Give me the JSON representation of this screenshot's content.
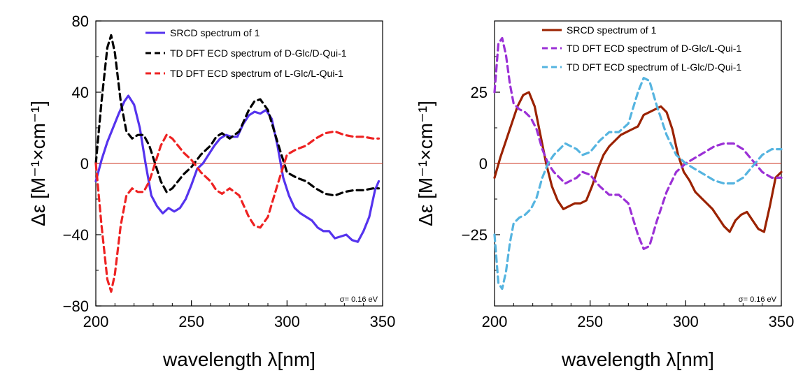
{
  "chart_data": [
    {
      "type": "line",
      "xlabel": "wavelength λ[nm]",
      "ylabel": "Δε [M⁻¹×cm⁻¹]",
      "xlim": [
        200,
        350
      ],
      "ylim": [
        -80,
        80
      ],
      "xticks": [
        "200",
        "250",
        "300",
        "350"
      ],
      "yticks": [
        "80",
        "40",
        "0",
        "−40",
        "−80"
      ],
      "annotation": "σ= 0.16 eV",
      "legend_position": "top-right",
      "series": [
        {
          "name": "SRCD spectrum of 1",
          "color": "#5533ee",
          "style": "solid",
          "x": [
            200,
            203,
            206,
            209,
            212,
            215,
            217,
            220,
            223,
            226,
            229,
            232,
            235,
            238,
            241,
            244,
            247,
            250,
            253,
            256,
            259,
            262,
            265,
            268,
            271,
            274,
            277,
            280,
            283,
            286,
            289,
            292,
            295,
            298,
            301,
            304,
            307,
            310,
            313,
            316,
            319,
            322,
            325,
            328,
            331,
            334,
            337,
            340,
            343,
            346,
            348
          ],
          "y": [
            -10,
            2,
            12,
            20,
            28,
            35,
            38,
            33,
            20,
            0,
            -18,
            -24,
            -28,
            -25,
            -27,
            -25,
            -20,
            -12,
            -3,
            0,
            5,
            10,
            14,
            16,
            15,
            15,
            22,
            27,
            29,
            28,
            30,
            25,
            10,
            -8,
            -18,
            -25,
            -28,
            -30,
            -32,
            -36,
            -38,
            -38,
            -42,
            -41,
            -40,
            -43,
            -44,
            -38,
            -30,
            -15,
            -10
          ]
        },
        {
          "name": "TD DFT ECD spectrum of D-Glc/D-Qui-1",
          "color": "#000000",
          "style": "dashed",
          "x": [
            200,
            203,
            206,
            208,
            210,
            213,
            216,
            219,
            222,
            225,
            228,
            231,
            234,
            237,
            240,
            243,
            246,
            250,
            255,
            260,
            263,
            266,
            270,
            275,
            280,
            283,
            286,
            290,
            295,
            300,
            305,
            310,
            315,
            320,
            325,
            330,
            335,
            340,
            345,
            348
          ],
          "y": [
            0,
            35,
            65,
            72,
            62,
            35,
            18,
            14,
            16,
            16,
            10,
            0,
            -10,
            -16,
            -14,
            -10,
            -6,
            -2,
            5,
            10,
            15,
            17,
            14,
            18,
            30,
            35,
            36,
            30,
            12,
            -5,
            -8,
            -10,
            -14,
            -17,
            -18,
            -16,
            -15,
            -15,
            -14,
            -14
          ]
        },
        {
          "name": "TD DFT ECD spectrum of L-Glc/L-Qui-1",
          "color": "#ee2222",
          "style": "dashed",
          "x": [
            200,
            203,
            206,
            208,
            210,
            213,
            216,
            219,
            222,
            225,
            228,
            231,
            234,
            237,
            240,
            243,
            246,
            250,
            255,
            260,
            263,
            266,
            270,
            275,
            280,
            283,
            286,
            290,
            295,
            300,
            305,
            310,
            315,
            320,
            325,
            330,
            335,
            340,
            345,
            348
          ],
          "y": [
            0,
            -35,
            -65,
            -72,
            -62,
            -35,
            -18,
            -14,
            -16,
            -16,
            -10,
            0,
            10,
            16,
            14,
            10,
            6,
            2,
            -5,
            -10,
            -15,
            -17,
            -14,
            -18,
            -30,
            -35,
            -36,
            -30,
            -12,
            5,
            8,
            10,
            14,
            17,
            18,
            16,
            15,
            15,
            14,
            14
          ]
        }
      ]
    },
    {
      "type": "line",
      "xlabel": "wavelength λ[nm]",
      "ylabel": "Δε [M⁻¹×cm⁻¹]",
      "xlim": [
        200,
        350
      ],
      "ylim": [
        -50,
        50
      ],
      "xticks": [
        "200",
        "250",
        "300",
        "350"
      ],
      "yticks": [
        "25",
        "0",
        "−25"
      ],
      "annotation": "σ= 0.16 eV",
      "legend_position": "top-right",
      "series": [
        {
          "name": "SRCD spectrum of 1",
          "color": "#9b2200",
          "style": "solid",
          "x": [
            200,
            203,
            206,
            209,
            212,
            215,
            218,
            221,
            224,
            227,
            230,
            233,
            236,
            239,
            242,
            245,
            248,
            251,
            254,
            257,
            260,
            263,
            266,
            269,
            272,
            275,
            278,
            281,
            284,
            287,
            290,
            293,
            296,
            299,
            302,
            305,
            308,
            311,
            314,
            317,
            320,
            323,
            326,
            329,
            332,
            335,
            338,
            341,
            344,
            347,
            350
          ],
          "y": [
            -5,
            2,
            8,
            14,
            20,
            24,
            25,
            20,
            10,
            0,
            -8,
            -13,
            -16,
            -15,
            -14,
            -14,
            -13,
            -8,
            -2,
            3,
            6,
            8,
            10,
            11,
            12,
            13,
            17,
            18,
            19,
            20,
            18,
            12,
            3,
            -3,
            -6,
            -10,
            -12,
            -14,
            -16,
            -19,
            -22,
            -24,
            -20,
            -18,
            -17,
            -20,
            -23,
            -24,
            -15,
            -5,
            -3
          ]
        },
        {
          "name": "TD DFT ECD spectrum of D-Glc/L-Qui-1",
          "color": "#9b30d6",
          "style": "dashed",
          "x": [
            200,
            202,
            204,
            206,
            208,
            210,
            213,
            216,
            219,
            222,
            225,
            228,
            231,
            234,
            237,
            240,
            243,
            246,
            250,
            255,
            260,
            265,
            270,
            275,
            278,
            281,
            285,
            290,
            295,
            300,
            305,
            310,
            315,
            320,
            325,
            330,
            335,
            340,
            345,
            350
          ],
          "y": [
            25,
            42,
            44,
            38,
            28,
            21,
            19,
            18,
            16,
            12,
            5,
            0,
            -3,
            -5,
            -7,
            -6,
            -5,
            -3,
            -4,
            -8,
            -11,
            -11,
            -14,
            -25,
            -30,
            -29,
            -20,
            -10,
            -3,
            0,
            2,
            4,
            6,
            7,
            7,
            5,
            1,
            -3,
            -5,
            -5
          ]
        },
        {
          "name": "TD DFT ECD spectrum of L-Glc/D-Qui-1",
          "color": "#55b4e0",
          "style": "dashed",
          "x": [
            200,
            202,
            204,
            206,
            208,
            210,
            213,
            216,
            219,
            222,
            225,
            228,
            231,
            234,
            237,
            240,
            243,
            246,
            250,
            255,
            260,
            265,
            270,
            275,
            278,
            281,
            285,
            290,
            295,
            300,
            305,
            310,
            315,
            320,
            325,
            330,
            335,
            340,
            345,
            350
          ],
          "y": [
            -25,
            -42,
            -44,
            -38,
            -28,
            -21,
            -19,
            -18,
            -16,
            -12,
            -5,
            0,
            3,
            5,
            7,
            6,
            5,
            3,
            4,
            8,
            11,
            11,
            14,
            25,
            30,
            29,
            20,
            10,
            3,
            0,
            -2,
            -4,
            -6,
            -7,
            -7,
            -5,
            -1,
            3,
            5,
            5
          ]
        }
      ]
    }
  ]
}
